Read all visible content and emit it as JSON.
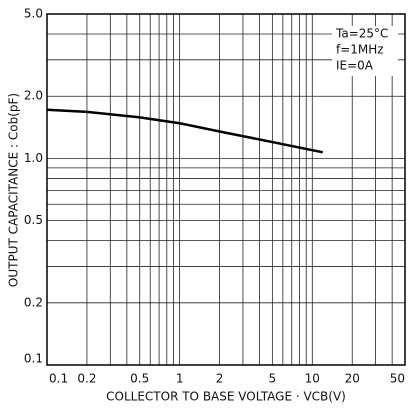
{
  "chart_data": {
    "type": "line",
    "log_x": true,
    "log_y": true,
    "x_label": "COLLECTOR TO BASE VOLTAGE · VCB(V)",
    "y_label": "OUTPUT CAPACITANCE : Cob(pF)",
    "annotations": [
      "Ta=25°C",
      "f=1MHz",
      "IE=0A"
    ],
    "x": [
      0.1,
      0.2,
      0.5,
      1,
      2,
      5,
      12
    ],
    "series": [
      {
        "color": "#000000",
        "values": [
          1.72,
          1.68,
          1.58,
          1.48,
          1.35,
          1.2,
          1.07
        ]
      }
    ],
    "xlim": [
      0.1,
      50
    ],
    "ylim": [
      0.1,
      5
    ],
    "xticks": [
      0.1,
      0.2,
      0.5,
      1,
      2,
      5,
      10,
      20,
      50
    ],
    "yticks": [
      0.1,
      0.2,
      0.5,
      {
        "value": 1,
        "label": "1.0"
      },
      {
        "value": 2,
        "label": "2.0"
      },
      {
        "value": 5,
        "label": "5.0"
      }
    ],
    "xgrid": [
      0.3,
      0.4,
      0.6,
      0.7,
      0.8,
      0.9,
      3,
      4,
      6,
      7,
      8,
      9,
      30,
      40
    ],
    "ygrid": [
      0.3,
      0.4,
      0.6,
      0.7,
      0.8,
      0.9,
      3,
      4
    ],
    "grid": true
  }
}
